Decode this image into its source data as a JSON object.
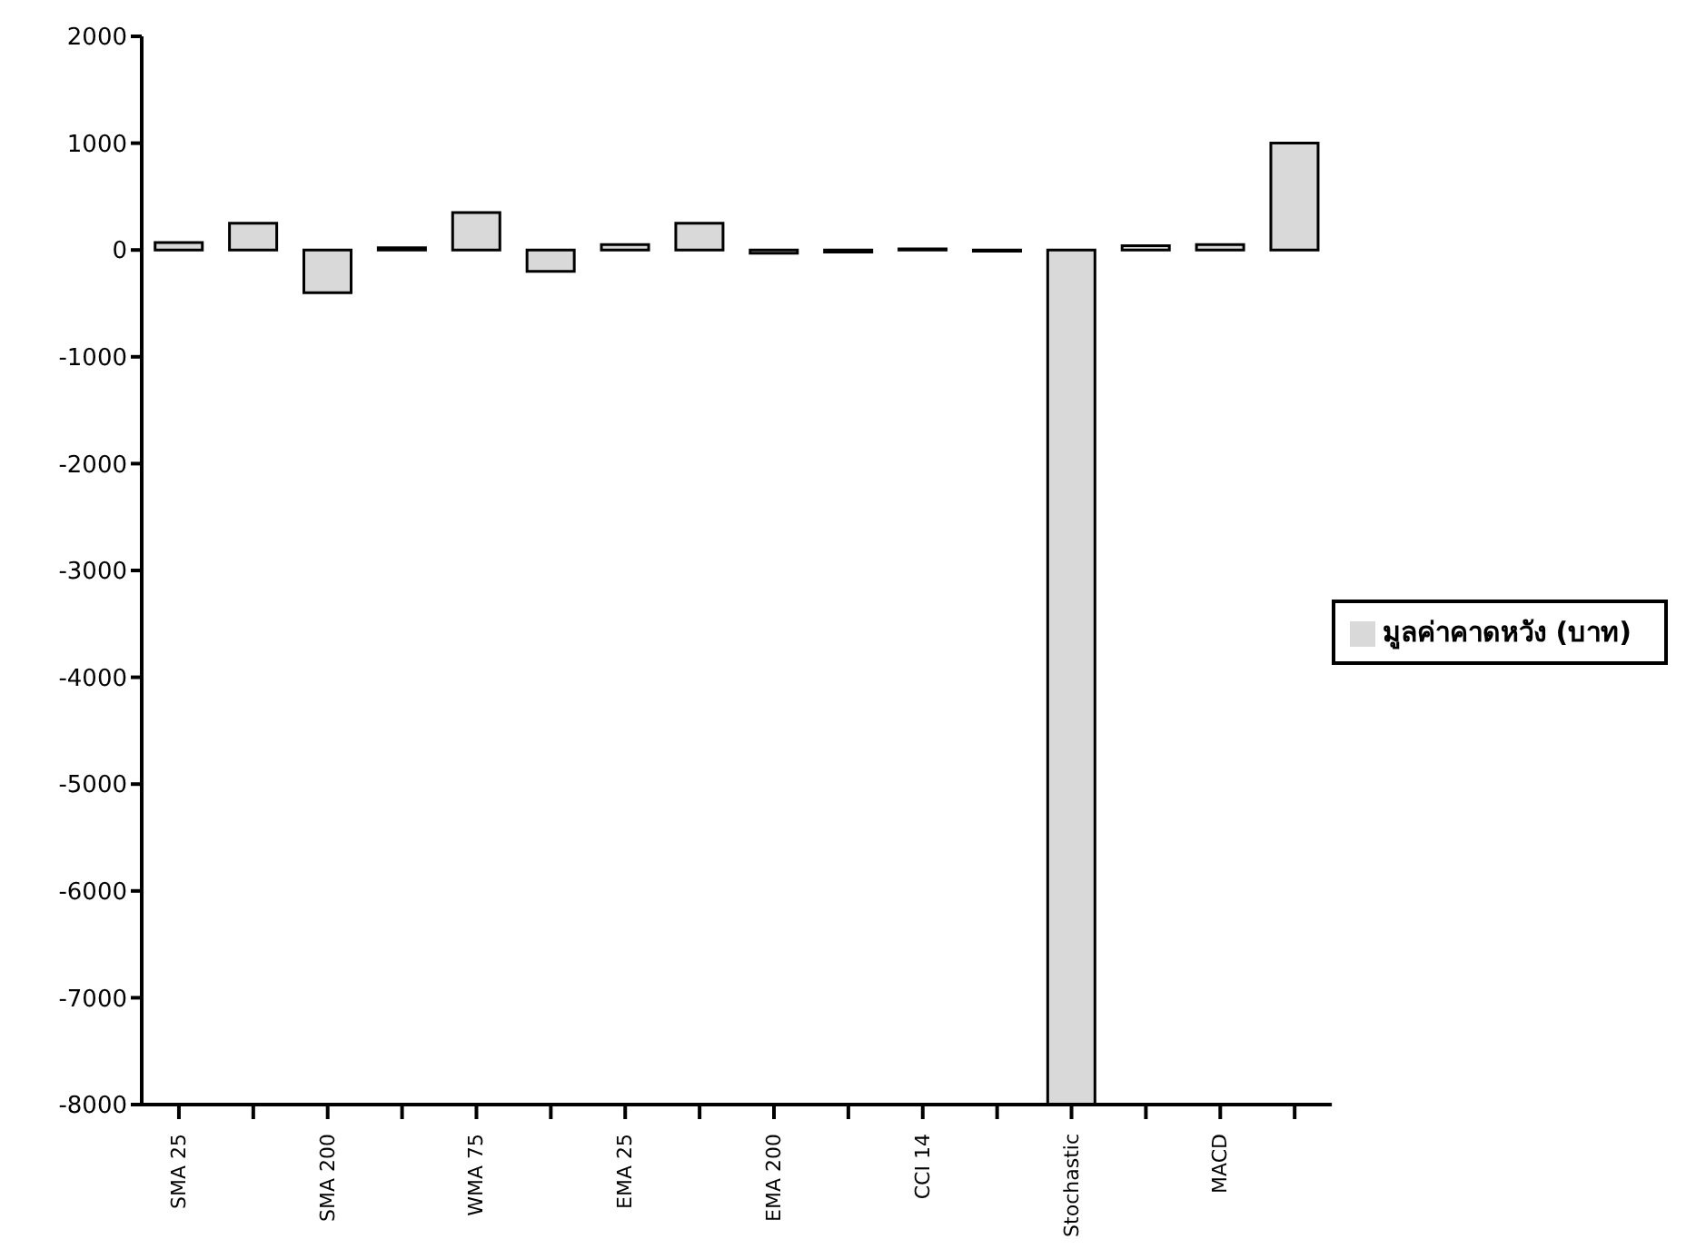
{
  "chart_data": {
    "type": "bar",
    "categories": [
      "SMA 25",
      null,
      "SMA 200",
      null,
      "WMA 75",
      null,
      "EMA 25",
      null,
      "EMA 200",
      null,
      "CCI 14",
      null,
      "Stochastic",
      null,
      "MACD",
      null
    ],
    "series": [
      {
        "name": "มูลค่าคาดหวัง (บาท)",
        "color": "#d9d9d9",
        "values": [
          70,
          250,
          -400,
          20,
          350,
          -200,
          50,
          250,
          -30,
          -20,
          10,
          -10,
          -8000,
          40,
          50,
          1000
        ]
      }
    ],
    "ylim": [
      -8000,
      2000
    ],
    "yticks": [
      -8000,
      -7000,
      -6000,
      -5000,
      -4000,
      -3000,
      -2000,
      -1000,
      0,
      1000,
      2000
    ],
    "grid": false,
    "legend": "right"
  }
}
